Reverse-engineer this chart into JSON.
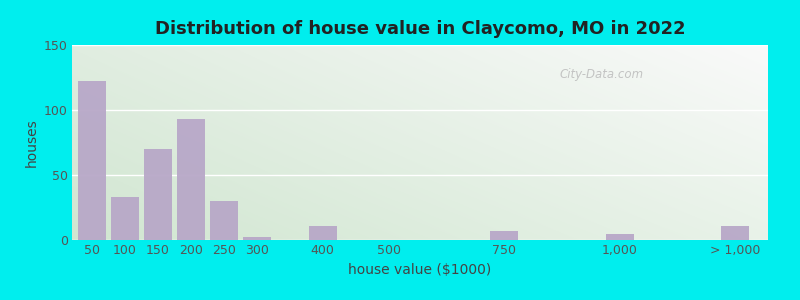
{
  "title": "Distribution of house value in Claycomo, MO in 2022",
  "xlabel": "house value ($1000)",
  "ylabel": "houses",
  "bar_color": "#b8a8c8",
  "background_outer": "#00eeee",
  "ylim": [
    0,
    150
  ],
  "yticks": [
    0,
    50,
    100,
    150
  ],
  "categories": [
    "50",
    "100",
    "150",
    "200",
    "250",
    "300",
    "400",
    "500",
    "750",
    "1,000",
    "> 1,000"
  ],
  "values": [
    122,
    33,
    70,
    93,
    30,
    2,
    11,
    0,
    7,
    5,
    11
  ],
  "title_fontsize": 13,
  "axis_label_fontsize": 10,
  "tick_fontsize": 9,
  "watermark_text": "City-Data.com"
}
